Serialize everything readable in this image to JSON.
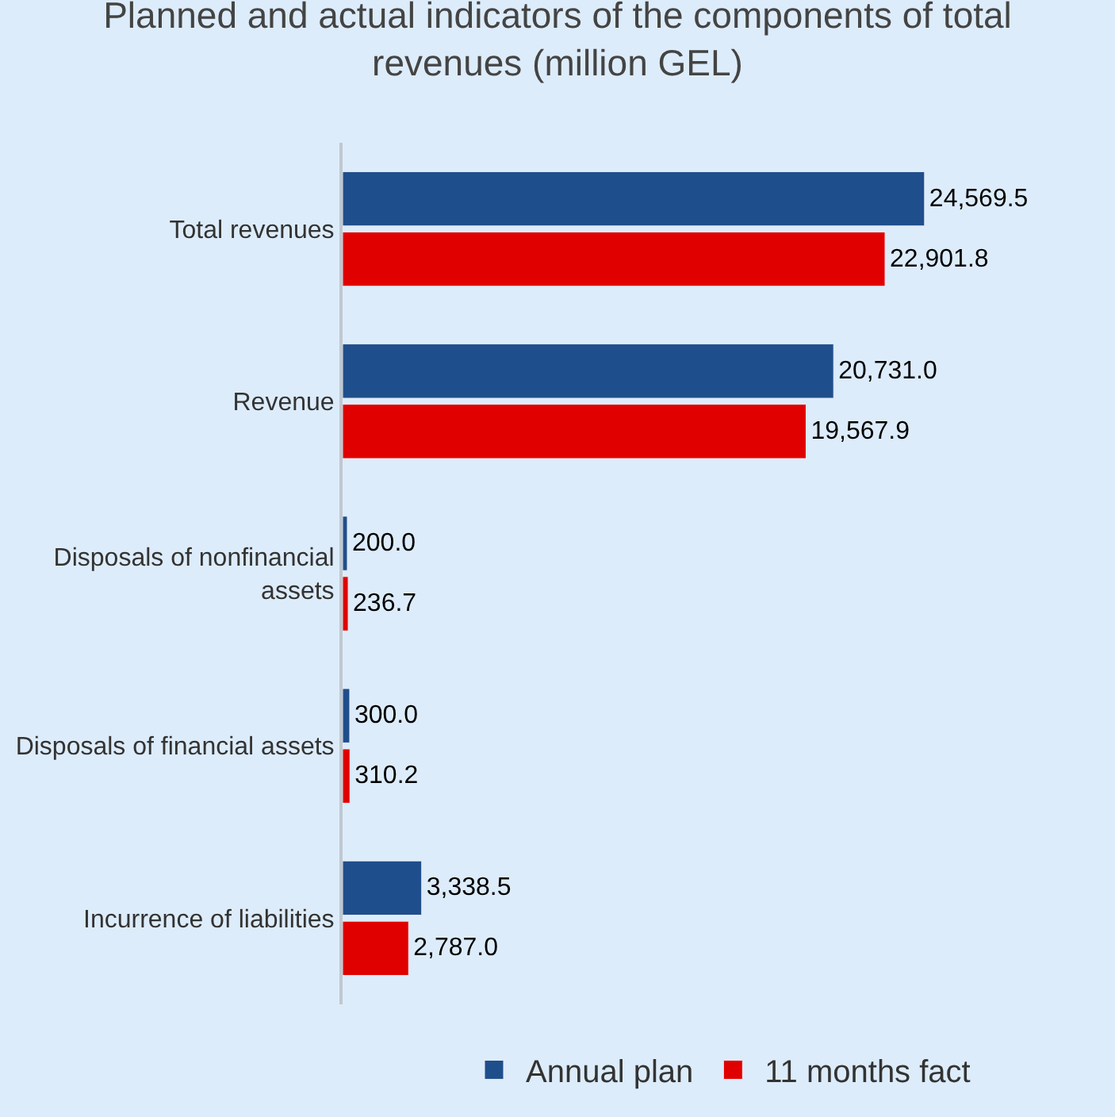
{
  "chart_data": {
    "type": "bar",
    "orientation": "horizontal",
    "title": "Planned and actual indicators of the components of total revenues (million GEL)",
    "categories": [
      "Total revenues",
      "Revenue",
      "Disposals of nonfinancial assets",
      "Disposals of financial assets",
      "Incurrence of liabilities"
    ],
    "series": [
      {
        "name": "Annual plan",
        "color": "#1f4e8c",
        "values": [
          24569.5,
          20731.0,
          200.0,
          300.0,
          3338.5
        ],
        "value_labels": [
          "24,569.5",
          "20,731.0",
          "200.0",
          "300.0",
          "3,338.5"
        ]
      },
      {
        "name": "11 months fact",
        "color": "#e00000",
        "values": [
          22901.8,
          19567.9,
          236.7,
          310.2,
          2787.0
        ],
        "value_labels": [
          "22,901.8",
          "19,567.9",
          "236.7",
          "310.2",
          "2,787.0"
        ]
      }
    ],
    "legend": "bottom",
    "grid": false
  }
}
